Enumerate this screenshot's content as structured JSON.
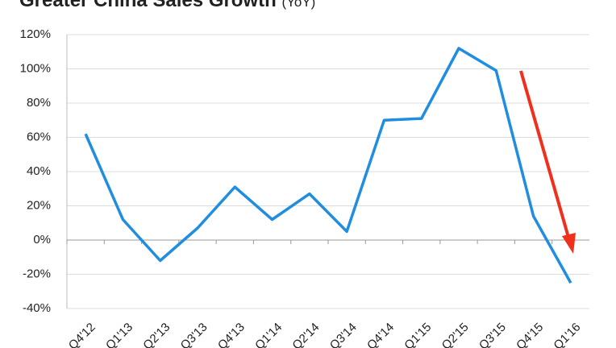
{
  "chart_data": {
    "type": "line",
    "title": "Greater China Sales Growth",
    "subtitle": "(YoY)",
    "categories": [
      "Q4'12",
      "Q1'13",
      "Q2'13",
      "Q3'13",
      "Q4'13",
      "Q1'14",
      "Q2'14",
      "Q3'14",
      "Q4'14",
      "Q1'15",
      "Q2'15",
      "Q3'15",
      "Q4'15",
      "Q1'16"
    ],
    "series": [
      {
        "name": "Greater China Sales Growth",
        "color": "#1f8de0",
        "values": [
          62,
          12,
          -12,
          7,
          31,
          12,
          27,
          5,
          70,
          71,
          112,
          99,
          14,
          -25
        ]
      }
    ],
    "ylim": [
      -40,
      120
    ],
    "yticks": [
      {
        "value": -40,
        "label": "-40%"
      },
      {
        "value": -20,
        "label": "-20%"
      },
      {
        "value": 0,
        "label": "0%"
      },
      {
        "value": 20,
        "label": "20%"
      },
      {
        "value": 40,
        "label": "40%"
      },
      {
        "value": 60,
        "label": "60%"
      },
      {
        "value": 80,
        "label": "80%"
      },
      {
        "value": 100,
        "label": "100%"
      },
      {
        "value": 120,
        "label": "120%"
      }
    ],
    "grid": true
  }
}
